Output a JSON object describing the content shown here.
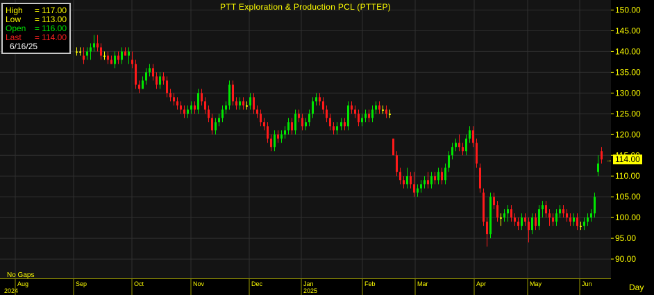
{
  "header": {
    "title": "PTT Exploration & Production PCL (PTTEP)"
  },
  "info_box": {
    "high_label": "High",
    "high_value": "= 117.00",
    "low_label": "Low",
    "low_value": "= 113.00",
    "open_label": "Open",
    "open_value": "= 116.00",
    "last_label": "Last",
    "last_value": "= 114.00",
    "date": "6/16/25"
  },
  "footer": {
    "gaps_label": "No Gaps",
    "period_label": "Day"
  },
  "colors": {
    "background": "#000000",
    "plot_bg": "#141414",
    "grid": "#303030",
    "up": "#00e600",
    "down": "#ff1a1a",
    "doji": "#ffff00",
    "text": "#ffff00",
    "high": "#ffff00",
    "low": "#ffff00",
    "open": "#00e600",
    "last": "#ff2020",
    "price_tag": "#ffff00"
  },
  "chart_data": {
    "type": "candlestick",
    "title": "PTT Exploration & Production PCL (PTTEP)",
    "y_ticks": [
      "150.00",
      "145.00",
      "140.00",
      "135.00",
      "130.00",
      "125.00",
      "120.00",
      "115.00",
      "110.00",
      "105.00",
      "100.00",
      "95.00",
      "90.00"
    ],
    "ylim": [
      86.5,
      152
    ],
    "x_months": [
      "Aug",
      "Sep",
      "Oct",
      "Nov",
      "Dec",
      "Jan",
      "Feb",
      "Mar",
      "Apr",
      "May",
      "Jun"
    ],
    "x_years": [
      "2024",
      "2025"
    ],
    "last_price_label": "114.00",
    "grid": true,
    "candles": [
      [
        140,
        141,
        139,
        140
      ],
      [
        140,
        141,
        139,
        140
      ],
      [
        139,
        141,
        137,
        138
      ],
      [
        139,
        141,
        138,
        140
      ],
      [
        140,
        142,
        138,
        141
      ],
      [
        141,
        144,
        140,
        142
      ],
      [
        142,
        144,
        140,
        141
      ],
      [
        141,
        142,
        138,
        139
      ],
      [
        139,
        140,
        138,
        139
      ],
      [
        139,
        140,
        137,
        138
      ],
      [
        138,
        139,
        137,
        137
      ],
      [
        137,
        140,
        136,
        139
      ],
      [
        139,
        140,
        137,
        138
      ],
      [
        138,
        141,
        137,
        140
      ],
      [
        140,
        141,
        139,
        139
      ],
      [
        139,
        141,
        137,
        140
      ],
      [
        138,
        140,
        136,
        137
      ],
      [
        137,
        138,
        131,
        132
      ],
      [
        132,
        133,
        130,
        131
      ],
      [
        131,
        134,
        131,
        133
      ],
      [
        133,
        136,
        132,
        135
      ],
      [
        135,
        137,
        134,
        136
      ],
      [
        136,
        137,
        133,
        134
      ],
      [
        134,
        135,
        131,
        132
      ],
      [
        132,
        135,
        131,
        134
      ],
      [
        134,
        135,
        132,
        133
      ],
      [
        133,
        134,
        129,
        130
      ],
      [
        130,
        131,
        128,
        129
      ],
      [
        129,
        130,
        127,
        128
      ],
      [
        128,
        129,
        126,
        127
      ],
      [
        127,
        128,
        125,
        126
      ],
      [
        126,
        127,
        124,
        125
      ],
      [
        125,
        127,
        124,
        126
      ],
      [
        126,
        128,
        125,
        127
      ],
      [
        127,
        128,
        125,
        126
      ],
      [
        126,
        131,
        125,
        130
      ],
      [
        130,
        131,
        127,
        128
      ],
      [
        128,
        129,
        125,
        126
      ],
      [
        126,
        127,
        123,
        124
      ],
      [
        124,
        125,
        120,
        121
      ],
      [
        121,
        124,
        120,
        123
      ],
      [
        123,
        125,
        122,
        124
      ],
      [
        124,
        127,
        123,
        126
      ],
      [
        126,
        128,
        125,
        127
      ],
      [
        127,
        133,
        126,
        132
      ],
      [
        132,
        133,
        127,
        128
      ],
      [
        128,
        129,
        126,
        127
      ],
      [
        127,
        129,
        126,
        128
      ],
      [
        128,
        129,
        126,
        127
      ],
      [
        127,
        128,
        126,
        127
      ],
      [
        127,
        130,
        126,
        129
      ],
      [
        129,
        130,
        125,
        126
      ],
      [
        126,
        127,
        124,
        125
      ],
      [
        125,
        126,
        122,
        123
      ],
      [
        123,
        124,
        121,
        122
      ],
      [
        122,
        123,
        118,
        119
      ],
      [
        119,
        120,
        116,
        117
      ],
      [
        117,
        121,
        116,
        120
      ],
      [
        120,
        121,
        118,
        119
      ],
      [
        119,
        121,
        118,
        120
      ],
      [
        120,
        122,
        119,
        121
      ],
      [
        121,
        124,
        120,
        123
      ],
      [
        123,
        124,
        120,
        121
      ],
      [
        121,
        126,
        120,
        125
      ],
      [
        125,
        126,
        123,
        124
      ],
      [
        124,
        125,
        121,
        122
      ],
      [
        122,
        124,
        121,
        123
      ],
      [
        123,
        126,
        122,
        125
      ],
      [
        125,
        129,
        124,
        128
      ],
      [
        128,
        130,
        127,
        129
      ],
      [
        129,
        130,
        127,
        128
      ],
      [
        128,
        129,
        125,
        126
      ],
      [
        126,
        127,
        123,
        124
      ],
      [
        124,
        125,
        121,
        122
      ],
      [
        122,
        123,
        120,
        121
      ],
      [
        121,
        123,
        120,
        122
      ],
      [
        122,
        124,
        121,
        123
      ],
      [
        123,
        124,
        121,
        122
      ],
      [
        122,
        128,
        121,
        127
      ],
      [
        127,
        128,
        125,
        126
      ],
      [
        126,
        127,
        124,
        125
      ],
      [
        125,
        126,
        122,
        123
      ],
      [
        123,
        125,
        122,
        124
      ],
      [
        124,
        126,
        123,
        125
      ],
      [
        125,
        126,
        123,
        124
      ],
      [
        124,
        127,
        123,
        126
      ],
      [
        126,
        128,
        125,
        127
      ],
      [
        127,
        128,
        125,
        126
      ],
      [
        126,
        127,
        125,
        126
      ],
      [
        126,
        127,
        124,
        125
      ],
      [
        125,
        126,
        124,
        125
      ],
      [
        119,
        119,
        115,
        115
      ],
      [
        115,
        116,
        110,
        111
      ],
      [
        111,
        112,
        108,
        109
      ],
      [
        109,
        110,
        107,
        108
      ],
      [
        108,
        112,
        107,
        110
      ],
      [
        110,
        111,
        107,
        108
      ],
      [
        108,
        111,
        105,
        106
      ],
      [
        106,
        108,
        105,
        107
      ],
      [
        107,
        109,
        106,
        108
      ],
      [
        108,
        110,
        107,
        109
      ],
      [
        109,
        111,
        107,
        108
      ],
      [
        108,
        111,
        107,
        110
      ],
      [
        110,
        111,
        108,
        109
      ],
      [
        109,
        112,
        108,
        111
      ],
      [
        111,
        112,
        108,
        109
      ],
      [
        109,
        113,
        108,
        112
      ],
      [
        112,
        116,
        111,
        115
      ],
      [
        115,
        118,
        114,
        117
      ],
      [
        117,
        119,
        116,
        118
      ],
      [
        118,
        120,
        116,
        117
      ],
      [
        117,
        118,
        115,
        116
      ],
      [
        116,
        120,
        115,
        119
      ],
      [
        119,
        122,
        118,
        121
      ],
      [
        121,
        122,
        117,
        118
      ],
      [
        118,
        119,
        112,
        113
      ],
      [
        112,
        113,
        106,
        107
      ],
      [
        106,
        107,
        98,
        99
      ],
      [
        99,
        100,
        93,
        96
      ],
      [
        96,
        106,
        95,
        105
      ],
      [
        105,
        106,
        102,
        103
      ],
      [
        103,
        104,
        99,
        100
      ],
      [
        100,
        101,
        98,
        100
      ],
      [
        100,
        102,
        99,
        101
      ],
      [
        101,
        103,
        99,
        102
      ],
      [
        102,
        103,
        99,
        100
      ],
      [
        100,
        101,
        98,
        99
      ],
      [
        99,
        100,
        97,
        98
      ],
      [
        98,
        101,
        97,
        100
      ],
      [
        100,
        101,
        98,
        99
      ],
      [
        99,
        100,
        94,
        97
      ],
      [
        97,
        101,
        96,
        100
      ],
      [
        100,
        101,
        97,
        98
      ],
      [
        98,
        103,
        97,
        102
      ],
      [
        102,
        104,
        100,
        103
      ],
      [
        103,
        104,
        100,
        101
      ],
      [
        101,
        102,
        98,
        100
      ],
      [
        100,
        101,
        98,
        99
      ],
      [
        99,
        102,
        98,
        101
      ],
      [
        101,
        103,
        100,
        102
      ],
      [
        102,
        103,
        100,
        101
      ],
      [
        101,
        102,
        99,
        100
      ],
      [
        100,
        101,
        98,
        99
      ],
      [
        99,
        101,
        98,
        100
      ],
      [
        100,
        101,
        97,
        98
      ],
      [
        98,
        99,
        97,
        98
      ],
      [
        98,
        100,
        97,
        99
      ],
      [
        99,
        101,
        98,
        100
      ],
      [
        100,
        102,
        99,
        101
      ],
      [
        101,
        106,
        100,
        105
      ],
      [
        111,
        115,
        110,
        113
      ],
      [
        116,
        117,
        113,
        114
      ]
    ]
  }
}
